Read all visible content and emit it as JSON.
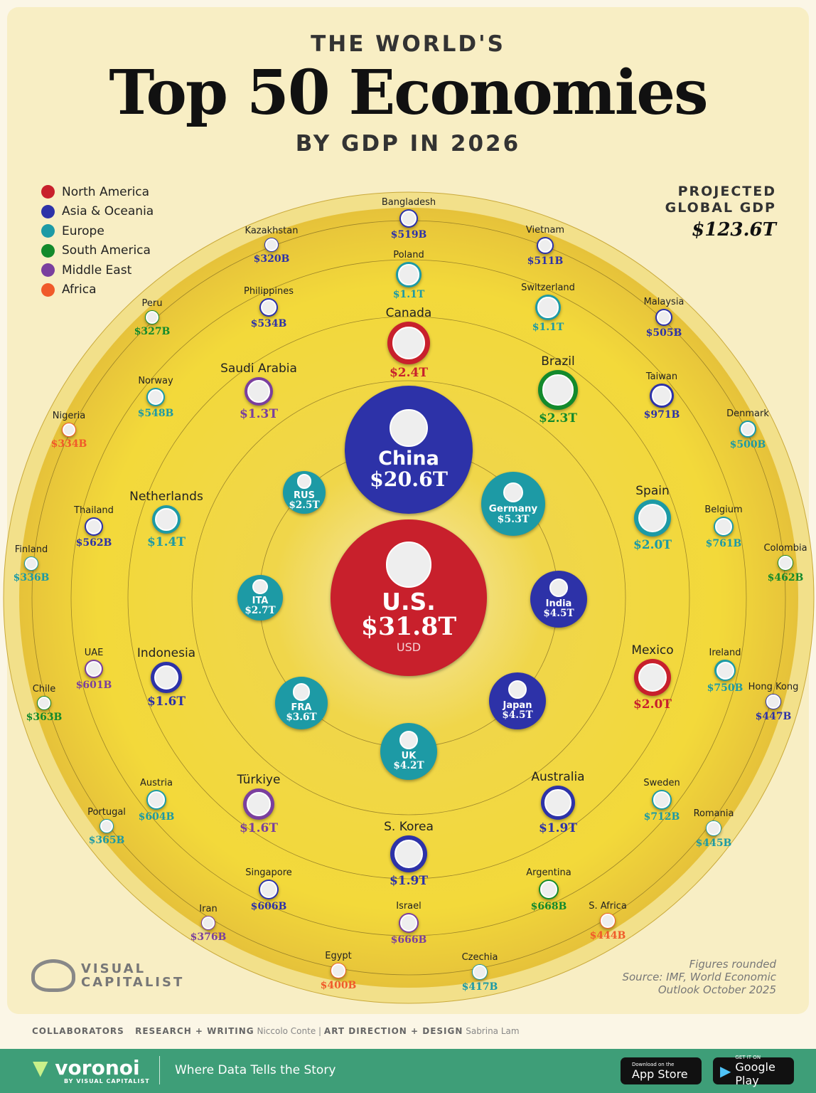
{
  "header": {
    "kicker": "THE WORLD'S",
    "title": "Top 50 Economies",
    "subtitle": "BY GDP IN 2026"
  },
  "legend": [
    {
      "label": "North America",
      "color": "#c8202c"
    },
    {
      "label": "Asia & Oceania",
      "color": "#2d32a8"
    },
    {
      "label": "Europe",
      "color": "#1d9aa5"
    },
    {
      "label": "South America",
      "color": "#138a2c"
    },
    {
      "label": "Middle East",
      "color": "#7a3f9e"
    },
    {
      "label": "Africa",
      "color": "#f05a2a"
    }
  ],
  "global": {
    "label1": "PROJECTED",
    "label2": "GLOBAL GDP",
    "value": "$123.6T"
  },
  "chart_data": {
    "type": "bubble",
    "unit": "USD",
    "economies": [
      {
        "name": "U.S.",
        "value": "$31.8T",
        "region": "North America",
        "inside": true,
        "unit": "USD"
      },
      {
        "name": "China",
        "value": "$20.6T",
        "region": "Asia & Oceania",
        "inside": true
      },
      {
        "name": "Germany",
        "value": "$5.3T",
        "region": "Europe",
        "inside": true
      },
      {
        "name": "India",
        "value": "$4.5T",
        "region": "Asia & Oceania",
        "inside": true
      },
      {
        "name": "Japan",
        "value": "$4.5T",
        "region": "Asia & Oceania",
        "inside": true
      },
      {
        "name": "UK",
        "value": "$4.2T",
        "region": "Europe",
        "inside": true
      },
      {
        "name": "FRA",
        "value": "$3.6T",
        "region": "Europe",
        "inside": true
      },
      {
        "name": "ITA",
        "value": "$2.7T",
        "region": "Europe",
        "inside": true
      },
      {
        "name": "RUS",
        "value": "$2.5T",
        "region": "Europe",
        "inside": true
      },
      {
        "name": "Canada",
        "value": "$2.4T",
        "region": "North America"
      },
      {
        "name": "Brazil",
        "value": "$2.3T",
        "region": "South America"
      },
      {
        "name": "Spain",
        "value": "$2.0T",
        "region": "Europe"
      },
      {
        "name": "Mexico",
        "value": "$2.0T",
        "region": "North America"
      },
      {
        "name": "Australia",
        "value": "$1.9T",
        "region": "Asia & Oceania"
      },
      {
        "name": "S. Korea",
        "value": "$1.9T",
        "region": "Asia & Oceania"
      },
      {
        "name": "Türkiye",
        "value": "$1.6T",
        "region": "Middle East"
      },
      {
        "name": "Indonesia",
        "value": "$1.6T",
        "region": "Asia & Oceania"
      },
      {
        "name": "Netherlands",
        "value": "$1.4T",
        "region": "Europe"
      },
      {
        "name": "Saudi Arabia",
        "value": "$1.3T",
        "region": "Middle East"
      },
      {
        "name": "Poland",
        "value": "$1.1T",
        "region": "Europe"
      },
      {
        "name": "Switzerland",
        "value": "$1.1T",
        "region": "Europe"
      },
      {
        "name": "Taiwan",
        "value": "$971B",
        "region": "Asia & Oceania"
      },
      {
        "name": "Belgium",
        "value": "$761B",
        "region": "Europe"
      },
      {
        "name": "Ireland",
        "value": "$750B",
        "region": "Europe"
      },
      {
        "name": "Sweden",
        "value": "$712B",
        "region": "Europe"
      },
      {
        "name": "Argentina",
        "value": "$668B",
        "region": "South America"
      },
      {
        "name": "Israel",
        "value": "$666B",
        "region": "Middle East"
      },
      {
        "name": "Singapore",
        "value": "$606B",
        "region": "Asia & Oceania"
      },
      {
        "name": "Austria",
        "value": "$604B",
        "region": "Europe"
      },
      {
        "name": "UAE",
        "value": "$601B",
        "region": "Middle East"
      },
      {
        "name": "Thailand",
        "value": "$562B",
        "region": "Asia & Oceania"
      },
      {
        "name": "Norway",
        "value": "$548B",
        "region": "Europe"
      },
      {
        "name": "Philippines",
        "value": "$534B",
        "region": "Asia & Oceania"
      },
      {
        "name": "Bangladesh",
        "value": "$519B",
        "region": "Asia & Oceania"
      },
      {
        "name": "Vietnam",
        "value": "$511B",
        "region": "Asia & Oceania"
      },
      {
        "name": "Malaysia",
        "value": "$505B",
        "region": "Asia & Oceania"
      },
      {
        "name": "Denmark",
        "value": "$500B",
        "region": "Europe"
      },
      {
        "name": "Colombia",
        "value": "$462B",
        "region": "South America"
      },
      {
        "name": "Hong Kong",
        "value": "$447B",
        "region": "Asia & Oceania"
      },
      {
        "name": "Romania",
        "value": "$445B",
        "region": "Europe"
      },
      {
        "name": "S. Africa",
        "value": "$444B",
        "region": "Africa"
      },
      {
        "name": "Czechia",
        "value": "$417B",
        "region": "Europe"
      },
      {
        "name": "Egypt",
        "value": "$400B",
        "region": "Africa"
      },
      {
        "name": "Iran",
        "value": "$376B",
        "region": "Middle East"
      },
      {
        "name": "Portugal",
        "value": "$365B",
        "region": "Europe"
      },
      {
        "name": "Chile",
        "value": "$363B",
        "region": "South America"
      },
      {
        "name": "Finland",
        "value": "$336B",
        "region": "Europe"
      },
      {
        "name": "Nigeria",
        "value": "$334B",
        "region": "Africa"
      },
      {
        "name": "Peru",
        "value": "$327B",
        "region": "South America"
      },
      {
        "name": "Kazakhstan",
        "value": "$320B",
        "region": "Asia & Oceania"
      }
    ]
  },
  "logo": {
    "line1": "VISUAL",
    "line2": "CAPITALIST"
  },
  "source": {
    "l1": "Figures rounded",
    "l2": "Source: IMF, World Economic",
    "l3": "Outlook October 2025"
  },
  "collaborators": {
    "label": "COLLABORATORS",
    "r_label": "RESEARCH + WRITING",
    "r_name": "Niccolo Conte",
    "d_label": "ART DIRECTION + DESIGN",
    "d_name": "Sabrina Lam"
  },
  "footer": {
    "brand": "voronoi",
    "brand_sub": "BY VISUAL CAPITALIST",
    "tagline": "Where Data Tells the Story",
    "appstore_small": "Download on the",
    "appstore": "App Store",
    "gplay_small": "GET IT ON",
    "gplay": "Google Play"
  }
}
